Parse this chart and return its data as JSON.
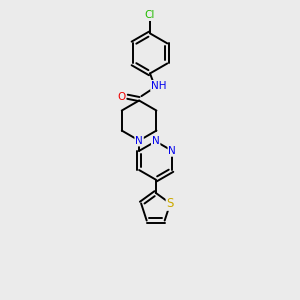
{
  "background_color": "#ebebeb",
  "bond_width": 1.4,
  "atom_colors": {
    "N": "#0000ee",
    "O": "#ee0000",
    "S": "#ccaa00",
    "Cl": "#22bb00",
    "H": "#448888"
  },
  "font_size": 7.5
}
